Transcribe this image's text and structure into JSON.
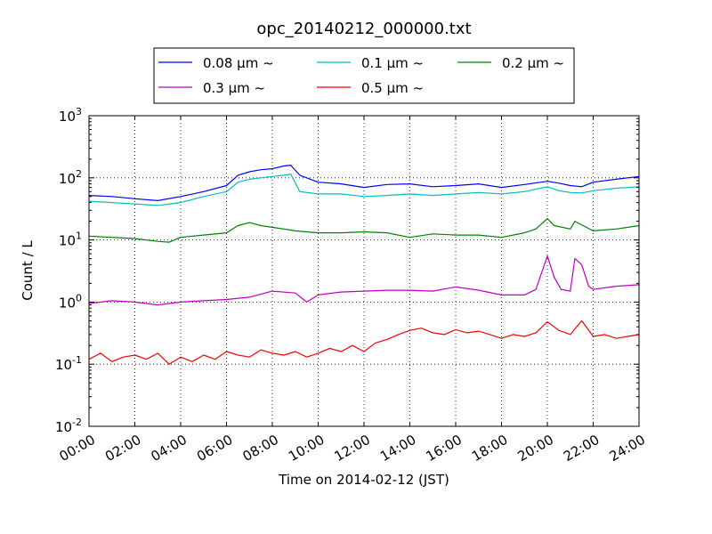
{
  "chart_data": {
    "type": "line",
    "title": "opc_20140212_000000.txt",
    "xlabel": "Time on 2014-02-12 (JST)",
    "ylabel": "Count / L",
    "x_unit": "hour",
    "xlim": [
      0,
      24
    ],
    "ylim": [
      0.01,
      1000
    ],
    "yscale": "log",
    "grid": true,
    "legend_position": "top-center",
    "x_ticks": [
      {
        "x": 0,
        "label": "00:00"
      },
      {
        "x": 2,
        "label": "02:00"
      },
      {
        "x": 4,
        "label": "04:00"
      },
      {
        "x": 6,
        "label": "06:00"
      },
      {
        "x": 8,
        "label": "08:00"
      },
      {
        "x": 10,
        "label": "10:00"
      },
      {
        "x": 12,
        "label": "12:00"
      },
      {
        "x": 14,
        "label": "14:00"
      },
      {
        "x": 16,
        "label": "16:00"
      },
      {
        "x": 18,
        "label": "18:00"
      },
      {
        "x": 20,
        "label": "20:00"
      },
      {
        "x": 22,
        "label": "22:00"
      },
      {
        "x": 24,
        "label": "24:00"
      }
    ],
    "y_ticks": [
      {
        "value": 0.01,
        "base": "10",
        "exp": "-2"
      },
      {
        "value": 0.1,
        "base": "10",
        "exp": "-1"
      },
      {
        "value": 1,
        "base": "10",
        "exp": "0"
      },
      {
        "value": 10,
        "base": "10",
        "exp": "1"
      },
      {
        "value": 100,
        "base": "10",
        "exp": "2"
      },
      {
        "value": 1000,
        "base": "10",
        "exp": "3"
      }
    ],
    "series": [
      {
        "name": "0.08 μm ~",
        "color": "#0000ff",
        "x": [
          0,
          1,
          2,
          3,
          4,
          5,
          6,
          6.5,
          7,
          7.5,
          8,
          8.5,
          8.8,
          9.2,
          10,
          11,
          12,
          13,
          14,
          15,
          16,
          17,
          18,
          19,
          20,
          20.5,
          21,
          21.5,
          22,
          23,
          24
        ],
        "y": [
          52,
          50,
          46,
          43,
          50,
          60,
          75,
          110,
          125,
          135,
          140,
          155,
          160,
          110,
          85,
          80,
          70,
          78,
          80,
          72,
          75,
          80,
          70,
          78,
          88,
          82,
          75,
          72,
          85,
          95,
          105
        ]
      },
      {
        "name": "0.1 μm ~",
        "color": "#00bfbf",
        "x": [
          0,
          1,
          2,
          3,
          4,
          5,
          6,
          6.5,
          7,
          7.5,
          8,
          8.5,
          8.8,
          9.2,
          10,
          11,
          12,
          13,
          14,
          15,
          16,
          17,
          18,
          19,
          20,
          20.5,
          21,
          21.5,
          22,
          23,
          24
        ],
        "y": [
          42,
          40,
          38,
          36,
          40,
          50,
          60,
          85,
          95,
          100,
          105,
          110,
          115,
          60,
          55,
          55,
          50,
          52,
          55,
          52,
          55,
          58,
          55,
          60,
          72,
          62,
          58,
          57,
          62,
          68,
          72
        ]
      },
      {
        "name": "0.2 μm ~",
        "color": "#008000",
        "x": [
          0,
          1,
          2,
          3,
          3.5,
          4,
          5,
          6,
          6.5,
          7,
          7.5,
          8,
          8.5,
          9,
          10,
          11,
          12,
          13,
          14,
          15,
          16,
          17,
          18,
          19,
          19.5,
          20,
          20.3,
          21,
          21.2,
          21.7,
          22,
          23,
          24
        ],
        "y": [
          11.5,
          11,
          10.5,
          9.5,
          9.2,
          11,
          12,
          13,
          17,
          19,
          17,
          16,
          15,
          14,
          13,
          13,
          13.5,
          13,
          11,
          12.5,
          12,
          12,
          11,
          13,
          15,
          22,
          17,
          15,
          20,
          16,
          14,
          15,
          17
        ]
      },
      {
        "name": "0.3 μm ~",
        "color": "#bf00bf",
        "x": [
          0,
          1,
          2,
          3,
          4,
          5,
          6,
          7,
          8,
          9,
          9.5,
          10,
          11,
          12,
          13,
          14,
          15,
          16,
          17,
          18,
          19,
          19.5,
          20,
          20.3,
          20.6,
          21,
          21.2,
          21.5,
          21.8,
          22,
          23,
          24
        ],
        "y": [
          0.95,
          1.05,
          1.0,
          0.9,
          1.0,
          1.05,
          1.1,
          1.2,
          1.5,
          1.4,
          1.0,
          1.3,
          1.45,
          1.5,
          1.55,
          1.55,
          1.5,
          1.75,
          1.55,
          1.3,
          1.3,
          1.6,
          5.5,
          2.5,
          1.6,
          1.5,
          5.0,
          4.0,
          1.8,
          1.6,
          1.8,
          1.9
        ]
      },
      {
        "name": "0.5 μm ~",
        "color": "#ff0000",
        "x": [
          0,
          0.5,
          1,
          1.5,
          2,
          2.5,
          3,
          3.5,
          4,
          4.5,
          5,
          5.5,
          6,
          6.5,
          7,
          7.5,
          8,
          8.5,
          9,
          9.5,
          10,
          10.5,
          11,
          11.5,
          12,
          12.5,
          13,
          13.5,
          14,
          14.5,
          15,
          15.5,
          16,
          16.5,
          17,
          17.5,
          18,
          18.5,
          19,
          19.5,
          20,
          20.5,
          21,
          21.5,
          22,
          22.5,
          23,
          23.5,
          24
        ],
        "y": [
          0.12,
          0.15,
          0.11,
          0.13,
          0.14,
          0.12,
          0.15,
          0.1,
          0.13,
          0.11,
          0.14,
          0.12,
          0.16,
          0.14,
          0.13,
          0.17,
          0.15,
          0.14,
          0.16,
          0.13,
          0.15,
          0.18,
          0.16,
          0.2,
          0.16,
          0.22,
          0.25,
          0.3,
          0.35,
          0.38,
          0.32,
          0.3,
          0.36,
          0.32,
          0.34,
          0.3,
          0.26,
          0.3,
          0.28,
          0.32,
          0.48,
          0.35,
          0.3,
          0.5,
          0.28,
          0.3,
          0.26,
          0.28,
          0.3
        ]
      }
    ]
  }
}
